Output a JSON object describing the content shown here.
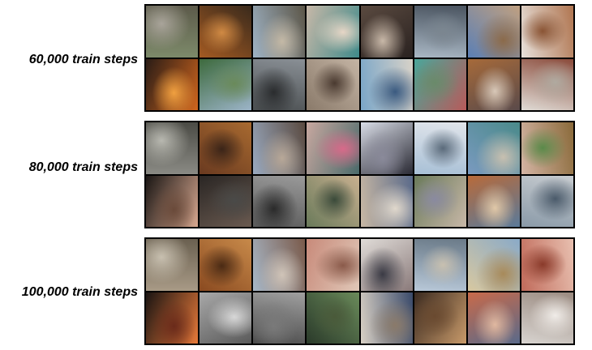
{
  "sections": [
    {
      "label": "60,000 train steps",
      "tiles": [
        {
          "name": "tile-animal-field",
          "colors": [
            "#7d8a6a",
            "#5c5a4a",
            "#a9a49a"
          ]
        },
        {
          "name": "tile-gym-room",
          "colors": [
            "#a35a22",
            "#3a2a1c",
            "#d08a44"
          ]
        },
        {
          "name": "tile-people-outdoors",
          "colors": [
            "#9fb3c5",
            "#5c5648",
            "#c4b9a6"
          ]
        },
        {
          "name": "tile-shoe-closeup",
          "colors": [
            "#c7b8a8",
            "#3f8a8a",
            "#e6d6c6"
          ]
        },
        {
          "name": "tile-person-dark-room",
          "colors": [
            "#5a4a40",
            "#2a2220",
            "#c8b8a8"
          ]
        },
        {
          "name": "tile-airplane-runway",
          "colors": [
            "#a9b7c4",
            "#4a5460",
            "#7b8690"
          ]
        },
        {
          "name": "tile-tower-building",
          "colors": [
            "#5b7fb5",
            "#c0a080",
            "#8b6a4a"
          ]
        },
        {
          "name": "tile-food-plate",
          "colors": [
            "#e6e0da",
            "#b07550",
            "#8a5434"
          ]
        },
        {
          "name": "tile-pan-food",
          "colors": [
            "#2a1c16",
            "#d0661e",
            "#f0a040"
          ]
        },
        {
          "name": "tile-car-plants",
          "colors": [
            "#3d6a3d",
            "#9cb4c8",
            "#6a8a5a"
          ]
        },
        {
          "name": "tile-street-building",
          "colors": [
            "#4a4e50",
            "#8a9096",
            "#2a2c2e"
          ]
        },
        {
          "name": "tile-cat-closeup",
          "colors": [
            "#8a7a6a",
            "#c4b4a4",
            "#4a3a30"
          ]
        },
        {
          "name": "tile-tennis-player",
          "colors": [
            "#7aa6c8",
            "#d8d2c8",
            "#3a5a80"
          ]
        },
        {
          "name": "tile-colorful-scene",
          "colors": [
            "#4aa69a",
            "#b85a5a",
            "#6a8a6a"
          ]
        },
        {
          "name": "tile-office-desk",
          "colors": [
            "#a66a3a",
            "#5a4a4a",
            "#d8c8b8"
          ]
        },
        {
          "name": "tile-bedroom",
          "colors": [
            "#e0dcd6",
            "#8a4a3a",
            "#b0aaa0"
          ]
        }
      ]
    },
    {
      "label": "80,000 train steps",
      "tiles": [
        {
          "name": "tile-animals-ground",
          "colors": [
            "#8a8a84",
            "#4a4a44",
            "#b8b8b0"
          ]
        },
        {
          "name": "tile-living-room",
          "colors": [
            "#6a3a20",
            "#a86a30",
            "#3a2418"
          ]
        },
        {
          "name": "tile-people-street",
          "colors": [
            "#9aaac0",
            "#5a4a40",
            "#b8a898"
          ]
        },
        {
          "name": "tile-shoes-pink",
          "colors": [
            "#c8a8a0",
            "#4a6a6a",
            "#d86a8a"
          ]
        },
        {
          "name": "tile-man-laptop",
          "colors": [
            "#d8dce6",
            "#2a2a34",
            "#8a8a9a"
          ]
        },
        {
          "name": "tile-airplane-sky",
          "colors": [
            "#a8c0d6",
            "#e0e4ea",
            "#5a6a7a"
          ]
        },
        {
          "name": "tile-city-building",
          "colors": [
            "#7a9ac0",
            "#4a8a8a",
            "#c8c0b0"
          ]
        },
        {
          "name": "tile-salad-plate",
          "colors": [
            "#d4b4a4",
            "#8a6a3a",
            "#5a8a4a"
          ]
        },
        {
          "name": "tile-cooked-food",
          "colors": [
            "#1a1614",
            "#d8a890",
            "#6a4a3a"
          ]
        },
        {
          "name": "tile-dark-vehicle",
          "colors": [
            "#2a2624",
            "#6a5a50",
            "#4a4a48"
          ]
        },
        {
          "name": "tile-bw-street",
          "colors": [
            "#5a5a5a",
            "#9a9a9a",
            "#2a2a2a"
          ]
        },
        {
          "name": "tile-market-scene",
          "colors": [
            "#6a7a5a",
            "#c8b090",
            "#3a4a3a"
          ]
        },
        {
          "name": "tile-person-road",
          "colors": [
            "#c8b8a4",
            "#5a6a8a",
            "#e0d8cc"
          ]
        },
        {
          "name": "tile-blurry-food",
          "colors": [
            "#6a7a5a",
            "#c8b8a8",
            "#8a8aa0"
          ]
        },
        {
          "name": "tile-shop-interior",
          "colors": [
            "#b86a3a",
            "#5a7a9a",
            "#e0c8a8"
          ]
        },
        {
          "name": "tile-room-bed",
          "colors": [
            "#8a9aa8",
            "#c8ccd0",
            "#4a5a6a"
          ]
        }
      ]
    },
    {
      "label": "100,000 train steps",
      "tiles": [
        {
          "name": "tile-herd-field",
          "colors": [
            "#a89a86",
            "#6a6050",
            "#c8c0b0"
          ]
        },
        {
          "name": "tile-kitchen",
          "colors": [
            "#8a4a20",
            "#c88a4a",
            "#4a2a14"
          ]
        },
        {
          "name": "tile-group-people",
          "colors": [
            "#a8b8c8",
            "#7a5a4a",
            "#d0c4b8"
          ]
        },
        {
          "name": "tile-shoe-hand",
          "colors": [
            "#c88a7a",
            "#e0c8b8",
            "#8a5a4a"
          ]
        },
        {
          "name": "tile-person-sitting",
          "colors": [
            "#e0dcd8",
            "#8a7a7a",
            "#3a3a44"
          ]
        },
        {
          "name": "tile-jet-airfield",
          "colors": [
            "#b8c8d8",
            "#6a7a88",
            "#c8c0b0"
          ]
        },
        {
          "name": "tile-ornate-building",
          "colors": [
            "#d8c8a0",
            "#8aaac8",
            "#a88a5a"
          ]
        },
        {
          "name": "tile-meat-plate",
          "colors": [
            "#c06a5a",
            "#e8c0b0",
            "#8a3a2a"
          ]
        },
        {
          "name": "tile-orange-food",
          "colors": [
            "#1a1412",
            "#e87a3a",
            "#6a2a1a"
          ]
        },
        {
          "name": "tile-toilet-room",
          "colors": [
            "#a8a8a8",
            "#5a5a5a",
            "#d8d8d8"
          ]
        },
        {
          "name": "tile-bw-vehicles",
          "colors": [
            "#4a4a4a",
            "#a0a0a0",
            "#7a7a7a"
          ]
        },
        {
          "name": "tile-tree-foliage",
          "colors": [
            "#2a3a2a",
            "#6a8a5a",
            "#4a5a3a"
          ]
        },
        {
          "name": "tile-man-outdoors",
          "colors": [
            "#d8d0c4",
            "#3a4a6a",
            "#8a7a6a"
          ]
        },
        {
          "name": "tile-dark-food",
          "colors": [
            "#3a2a20",
            "#c89a6a",
            "#6a4a30"
          ]
        },
        {
          "name": "tile-crowded-room",
          "colors": [
            "#c86a4a",
            "#5a6a8a",
            "#e0b8a0"
          ]
        },
        {
          "name": "tile-bed-pillows",
          "colors": [
            "#d8d4d0",
            "#9a8a80",
            "#f0ece8"
          ]
        }
      ]
    }
  ]
}
